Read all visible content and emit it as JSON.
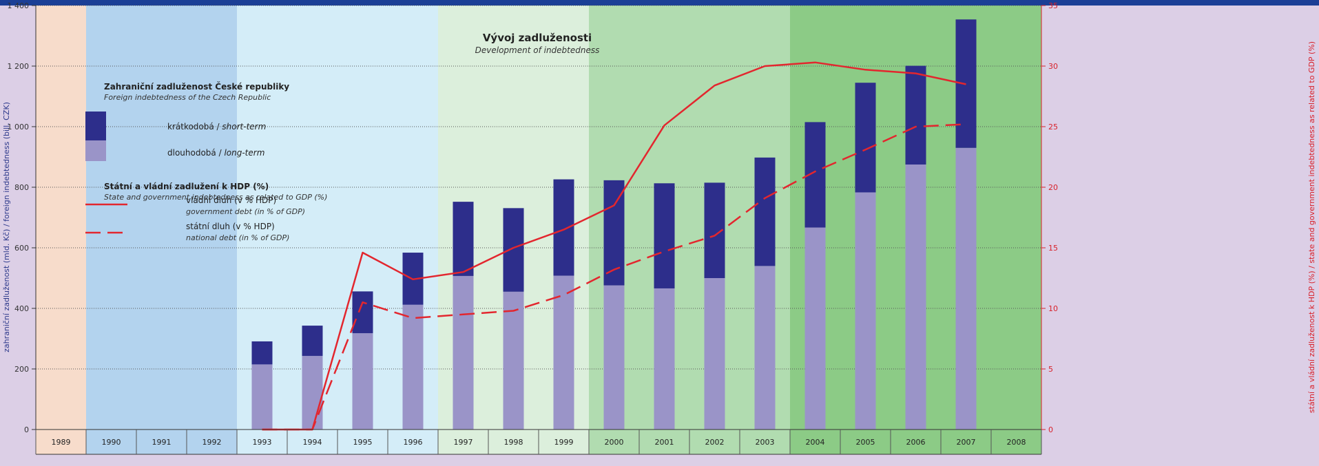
{
  "chart_data": {
    "type": "bar",
    "title": "Vývoj zadluženosti",
    "subtitle": "Development of indebtedness",
    "categories": [
      "1989",
      "1990",
      "1991",
      "1992",
      "1993",
      "1994",
      "1995",
      "1996",
      "1997",
      "1998",
      "1999",
      "2000",
      "2001",
      "2002",
      "2003",
      "2004",
      "2005",
      "2006",
      "2007",
      "2008"
    ],
    "left_axis": {
      "label": "zahraniční zadluženost (mld. Kč) / foreign indebtedness (bill. CZK)",
      "ylim": [
        0,
        1400
      ],
      "ticks": [
        0,
        200,
        400,
        600,
        800,
        1000,
        1200,
        1400
      ],
      "tick_labels": [
        "0",
        "200",
        "400",
        "600",
        "800",
        "1 000",
        "1 200",
        "1 400"
      ]
    },
    "right_axis": {
      "label": "státní a vládní zadluženost k HDP (%) / state and government indebtedness as related to GDP (%)",
      "ylim": [
        0,
        35
      ],
      "ticks": [
        0,
        5,
        10,
        15,
        20,
        25,
        30,
        35
      ],
      "tick_labels": [
        "0",
        "5",
        "10",
        "15",
        "20",
        "25",
        "30",
        "35"
      ]
    },
    "bars": {
      "stacked": true,
      "series": [
        {
          "key": "long_term",
          "name": "dlouhodobá / long-term",
          "color": "#9a94c8",
          "values": [
            null,
            null,
            null,
            null,
            215,
            243,
            318,
            412,
            507,
            455,
            508,
            476,
            466,
            500,
            540,
            667,
            783,
            875,
            930,
            null
          ]
        },
        {
          "key": "short_term",
          "name": "krátkodobá / short-term",
          "color": "#2d2e8b",
          "values": [
            null,
            null,
            null,
            null,
            76,
            100,
            138,
            172,
            245,
            276,
            318,
            347,
            347,
            315,
            358,
            348,
            362,
            326,
            424,
            null
          ]
        }
      ]
    },
    "lines": {
      "series": [
        {
          "key": "government",
          "name": "vládní dluh (v % HDP)",
          "name_en": "government debt (in % of GDP)",
          "color": "#e3262e",
          "style": "solid",
          "values": [
            null,
            null,
            null,
            null,
            0,
            0,
            14.6,
            12.4,
            13.0,
            15.0,
            16.5,
            18.5,
            25.1,
            28.4,
            30.0,
            30.3,
            29.7,
            29.4,
            28.5,
            null
          ]
        },
        {
          "key": "national",
          "name": "státní dluh (v % HDP)",
          "name_en": "national debt (in % of GDP)",
          "color": "#e3262e",
          "style": "dashed",
          "values": [
            null,
            null,
            null,
            null,
            0,
            0,
            10.5,
            9.2,
            9.5,
            9.8,
            11.1,
            13.2,
            14.7,
            16.0,
            19.1,
            21.3,
            23.1,
            25.0,
            25.2,
            null
          ]
        }
      ]
    },
    "legend": {
      "foreign_title": "Zahraniční zadluženost České republiky",
      "foreign_subtitle": "Foreign indebtedness of the Czech Republic",
      "short_label": "krátkodobá / ",
      "short_label_en": "short-term",
      "long_label": "dlouhodobá / ",
      "long_label_en": "long-term",
      "gdp_title": "Státní a vládní zadlužení k HDP (%)",
      "gdp_subtitle": "State and government indebtedness as related to GDP (%)",
      "gov_label": "vládní dluh (v % HDP)",
      "gov_label_en": "government debt (in % of GDP)",
      "nat_label": "státní dluh (v % HDP)",
      "nat_label_en": "national debt (in % of GDP)"
    },
    "period_bands": [
      {
        "from": 0,
        "to": 0,
        "color": "#f7dccb"
      },
      {
        "from": 1,
        "to": 3,
        "color": "#b3d3ee"
      },
      {
        "from": 4,
        "to": 7,
        "color": "#d4edf8"
      },
      {
        "from": 8,
        "to": 10,
        "color": "#dcefdc"
      },
      {
        "from": 11,
        "to": 14,
        "color": "#b1dcb0"
      },
      {
        "from": 15,
        "to": 19,
        "color": "#8ccb86"
      }
    ],
    "grid": true,
    "colors": {
      "top_bar": "#1b3f96",
      "right_axis": "#d8212a",
      "left_axis_label": "#2e3a8c"
    }
  }
}
